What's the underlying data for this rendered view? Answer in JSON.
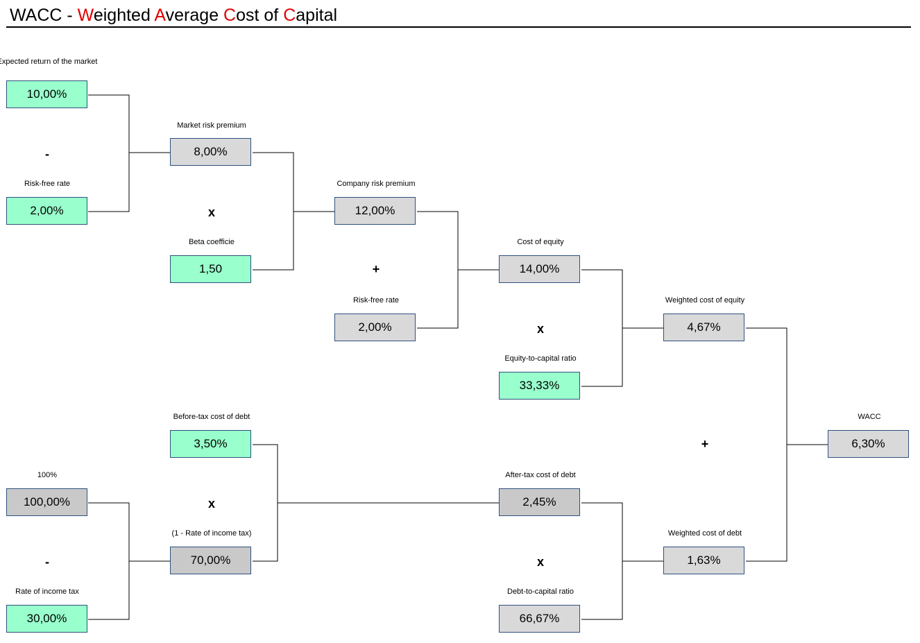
{
  "title": {
    "prefix": "WACC - ",
    "parts": [
      {
        "first": "W",
        "rest": "eighted "
      },
      {
        "first": "A",
        "rest": "verage "
      },
      {
        "first": "C",
        "rest": "ost of "
      },
      {
        "first": "C",
        "rest": "apital"
      }
    ]
  },
  "nodes": {
    "expected_return": {
      "label": "Expected return of the market",
      "value": "10,00%"
    },
    "risk_free_1": {
      "label": "Risk-free rate",
      "value": "2,00%"
    },
    "market_risk_premium": {
      "label": "Market risk premium",
      "value": "8,00%"
    },
    "beta": {
      "label": "Beta coefficie",
      "value": "1,50"
    },
    "company_risk_premium": {
      "label": "Company risk premium",
      "value": "12,00%"
    },
    "risk_free_2": {
      "label": "Risk-free rate",
      "value": "2,00%"
    },
    "cost_of_equity": {
      "label": "Cost of equity",
      "value": "14,00%"
    },
    "equity_ratio": {
      "label": "Equity-to-capital ratio",
      "value": "33,33%"
    },
    "weighted_cost_equity": {
      "label": "Weighted cost of equity",
      "value": "4,67%"
    },
    "wacc": {
      "label": "WACC",
      "value": "6,30%"
    },
    "before_tax_debt": {
      "label": "Before-tax cost of debt",
      "value": "3,50%"
    },
    "hundred": {
      "label": "100%",
      "value": "100,00%"
    },
    "tax_rate": {
      "label": "Rate of income tax",
      "value": "30,00%"
    },
    "one_minus_tax": {
      "label": "(1 - Rate of income tax)",
      "value": "70,00%"
    },
    "after_tax_debt": {
      "label": "After-tax cost of debt",
      "value": "2,45%"
    },
    "debt_ratio": {
      "label": "Debt-to-capital ratio",
      "value": "66,67%"
    },
    "weighted_cost_debt": {
      "label": "Weighted cost of debt",
      "value": "1,63%"
    }
  },
  "operators": {
    "op1": "-",
    "op2": "x",
    "op3": "+",
    "op4": "x",
    "op5": "+",
    "op6": "x",
    "op7": "-",
    "op8": "x"
  },
  "colors": {
    "input_fill": "#99ffcc",
    "calc_fill": "#d9d9d9",
    "calc_fill_dark": "#c9c9c9",
    "box_border": "#2f4f7f",
    "title_accent": "#e00000"
  }
}
